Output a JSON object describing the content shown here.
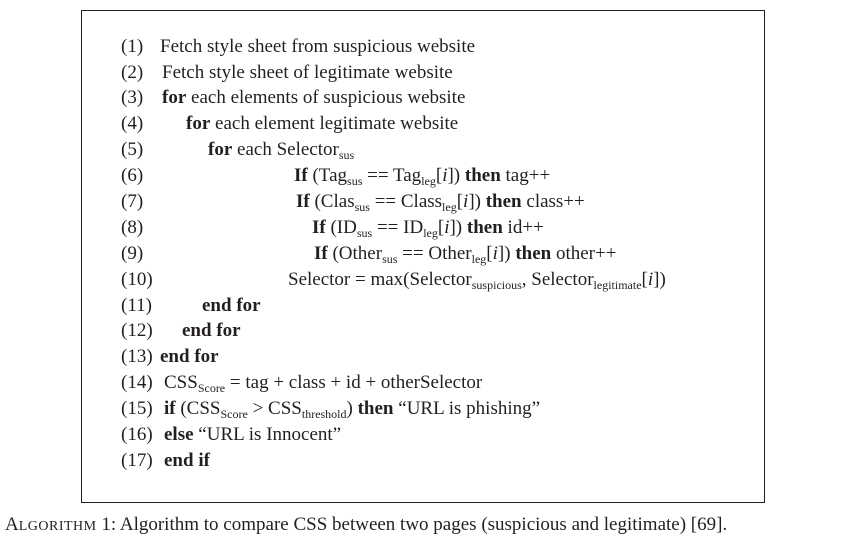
{
  "algorithm": {
    "lines": [
      {
        "num": "(1)",
        "parts": [
          {
            "t": "Fetch style sheet from suspicious website"
          }
        ]
      },
      {
        "num": "(2)",
        "parts": [
          {
            "t": "Fetch style sheet of legitimate website"
          }
        ]
      },
      {
        "num": "(3)",
        "parts": [
          {
            "t": "for",
            "b": true
          },
          {
            "t": " each elements of suspicious website"
          }
        ]
      },
      {
        "num": "(4)",
        "parts": [
          {
            "t": "for",
            "b": true
          },
          {
            "t": " each element legitimate website"
          }
        ]
      },
      {
        "num": "(5)",
        "parts": [
          {
            "t": "for",
            "b": true
          },
          {
            "t": " each Selector"
          },
          {
            "t": "sus",
            "s": true
          }
        ]
      },
      {
        "num": "(6)",
        "parts": [
          {
            "t": "If",
            "b": true
          },
          {
            "t": " (Tag"
          },
          {
            "t": "sus",
            "s": true
          },
          {
            "t": " == Tag"
          },
          {
            "t": "leg",
            "s": true
          },
          {
            "t": "["
          },
          {
            "t": "i",
            "i": true
          },
          {
            "t": "]) "
          },
          {
            "t": "then",
            "b": true
          },
          {
            "t": " tag++"
          }
        ]
      },
      {
        "num": "(7)",
        "parts": [
          {
            "t": "If",
            "b": true
          },
          {
            "t": " (Clas"
          },
          {
            "t": "sus",
            "s": true
          },
          {
            "t": " == Class"
          },
          {
            "t": "leg",
            "s": true
          },
          {
            "t": "["
          },
          {
            "t": "i",
            "i": true
          },
          {
            "t": "]) "
          },
          {
            "t": "then",
            "b": true
          },
          {
            "t": " class++"
          }
        ]
      },
      {
        "num": "(8)",
        "parts": [
          {
            "t": "If",
            "b": true
          },
          {
            "t": " (ID"
          },
          {
            "t": "sus",
            "s": true
          },
          {
            "t": " == ID"
          },
          {
            "t": "leg",
            "s": true
          },
          {
            "t": "["
          },
          {
            "t": "i",
            "i": true
          },
          {
            "t": "]) "
          },
          {
            "t": "then",
            "b": true
          },
          {
            "t": " id++"
          }
        ]
      },
      {
        "num": "(9)",
        "parts": [
          {
            "t": "If",
            "b": true
          },
          {
            "t": " (Other"
          },
          {
            "t": "sus",
            "s": true
          },
          {
            "t": " == Other"
          },
          {
            "t": "leg",
            "s": true
          },
          {
            "t": "["
          },
          {
            "t": "i",
            "i": true
          },
          {
            "t": "]) "
          },
          {
            "t": "then",
            "b": true
          },
          {
            "t": " other++"
          }
        ]
      },
      {
        "num": "(10)",
        "parts": [
          {
            "t": "Selector = max(Selector"
          },
          {
            "t": "suspicious",
            "s": true
          },
          {
            "t": ", Selector"
          },
          {
            "t": "legitimate",
            "s": true
          },
          {
            "t": "["
          },
          {
            "t": "i",
            "i": true
          },
          {
            "t": "])"
          }
        ]
      },
      {
        "num": "(11)",
        "parts": [
          {
            "t": "end for",
            "b": true
          }
        ]
      },
      {
        "num": "(12)",
        "parts": [
          {
            "t": "end for",
            "b": true
          }
        ]
      },
      {
        "num": "(13)",
        "parts": [
          {
            "t": "end for",
            "b": true
          }
        ]
      },
      {
        "num": "(14)",
        "parts": [
          {
            "t": "CSS"
          },
          {
            "t": "Score",
            "s": true
          },
          {
            "t": " = tag + class + id + otherSelector"
          }
        ]
      },
      {
        "num": "(15)",
        "parts": [
          {
            "t": "if",
            "b": true
          },
          {
            "t": " (CSS"
          },
          {
            "t": "Score",
            "s": true
          },
          {
            "t": " > CSS"
          },
          {
            "t": "threshold",
            "s": true
          },
          {
            "t": ") "
          },
          {
            "t": "then",
            "b": true
          },
          {
            "t": " “URL is phishing”"
          }
        ]
      },
      {
        "num": "(16)",
        "parts": [
          {
            "t": "else",
            "b": true
          },
          {
            "t": "  “URL is Innocent”"
          }
        ]
      },
      {
        "num": "(17)",
        "parts": [
          {
            "t": "end if",
            "b": true
          }
        ]
      }
    ]
  },
  "caption": {
    "label_first": "A",
    "label_rest": "LGORITHM",
    "label_number": " 1:",
    "text": " Algorithm to compare CSS between two pages (suspicious and legitimate) [69]."
  }
}
